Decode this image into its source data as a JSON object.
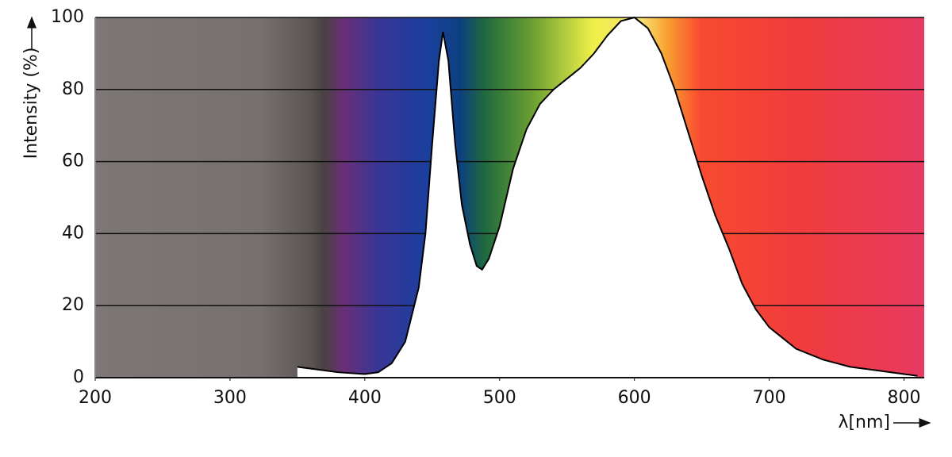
{
  "chart_data": {
    "type": "area",
    "y_label": "Intensity (%)",
    "x_label": "λ[nm]",
    "x": [
      350,
      360,
      380,
      400,
      410,
      420,
      430,
      440,
      445,
      450,
      455,
      458,
      462,
      467,
      472,
      478,
      483,
      487,
      492,
      500,
      510,
      520,
      530,
      540,
      550,
      560,
      570,
      580,
      590,
      600,
      610,
      620,
      630,
      640,
      650,
      660,
      670,
      680,
      690,
      700,
      710,
      720,
      740,
      760,
      780,
      800,
      810
    ],
    "values": [
      3,
      2.5,
      1.5,
      1,
      1.5,
      4,
      10,
      25,
      40,
      65,
      88,
      96,
      88,
      65,
      48,
      37,
      31,
      30,
      33,
      42,
      58,
      69,
      76,
      80,
      83,
      86,
      90,
      95,
      99,
      100,
      97,
      90,
      80,
      68,
      56,
      45,
      36,
      26,
      19,
      14,
      11,
      8,
      5,
      3,
      2,
      1,
      0.5
    ],
    "color": "#ffffff",
    "line_color": "#000000",
    "xlim": [
      200,
      815
    ],
    "ylim": [
      0,
      100
    ],
    "xticks": [
      200,
      300,
      400,
      500,
      600,
      700,
      800
    ],
    "yticks": [
      0,
      20,
      40,
      60,
      80,
      100
    ],
    "grid": true
  }
}
